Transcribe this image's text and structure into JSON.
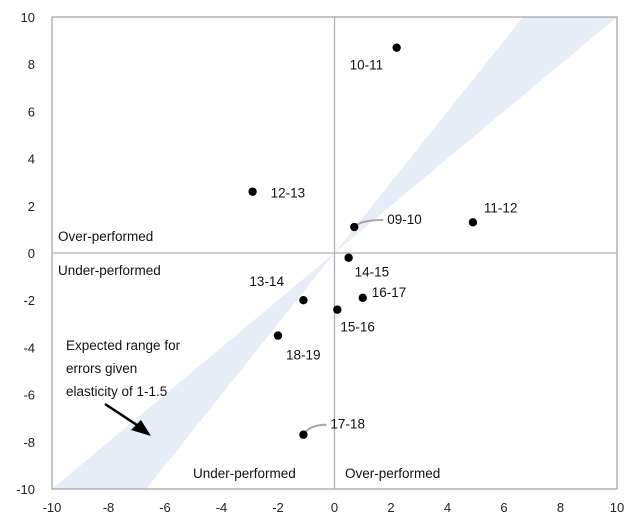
{
  "chart_data": {
    "type": "scatter",
    "title": "",
    "xlabel": "",
    "ylabel": "",
    "xlim": [
      -10,
      10
    ],
    "ylim": [
      -10,
      10
    ],
    "x_ticks": [
      "-10",
      "-8",
      "-6",
      "-4",
      "-2",
      "0",
      "2",
      "4",
      "6",
      "8",
      "10"
    ],
    "y_ticks": [
      "10",
      "8",
      "6",
      "4",
      "2",
      "0",
      "-2",
      "-4",
      "-6",
      "-8",
      "-10"
    ],
    "grid": false,
    "points": [
      {
        "label": "09-10",
        "x": 0.7,
        "y": 1.1
      },
      {
        "label": "10-11",
        "x": 2.2,
        "y": 8.7
      },
      {
        "label": "11-12",
        "x": 4.9,
        "y": 1.3
      },
      {
        "label": "12-13",
        "x": -2.9,
        "y": 2.6
      },
      {
        "label": "13-14",
        "x": -1.1,
        "y": -2.0
      },
      {
        "label": "14-15",
        "x": 0.5,
        "y": -0.2
      },
      {
        "label": "15-16",
        "x": 0.1,
        "y": -2.4
      },
      {
        "label": "16-17",
        "x": 1.0,
        "y": -1.9
      },
      {
        "label": "17-18",
        "x": -1.1,
        "y": -7.7
      },
      {
        "label": "18-19",
        "x": -2.0,
        "y": -3.5
      }
    ],
    "band": {
      "label": "Expected range for errors given elasticity of 1-1.5",
      "slope_low": 1.0,
      "slope_high": 1.5,
      "color": "#e6edf7"
    },
    "annotations": {
      "over_left": "Over-performed",
      "under_left": "Under-performed",
      "under_bottom": "Under-performed",
      "over_bottom": "Over-performed",
      "range_line1": "Expected range for",
      "range_line2": "errors given",
      "range_line3": "elasticity of 1-1.5"
    },
    "colors": {
      "point": "#000000",
      "axis": "#b0b0b0",
      "frame": "#8c8c8c",
      "leader": "#a6a6a6"
    }
  }
}
